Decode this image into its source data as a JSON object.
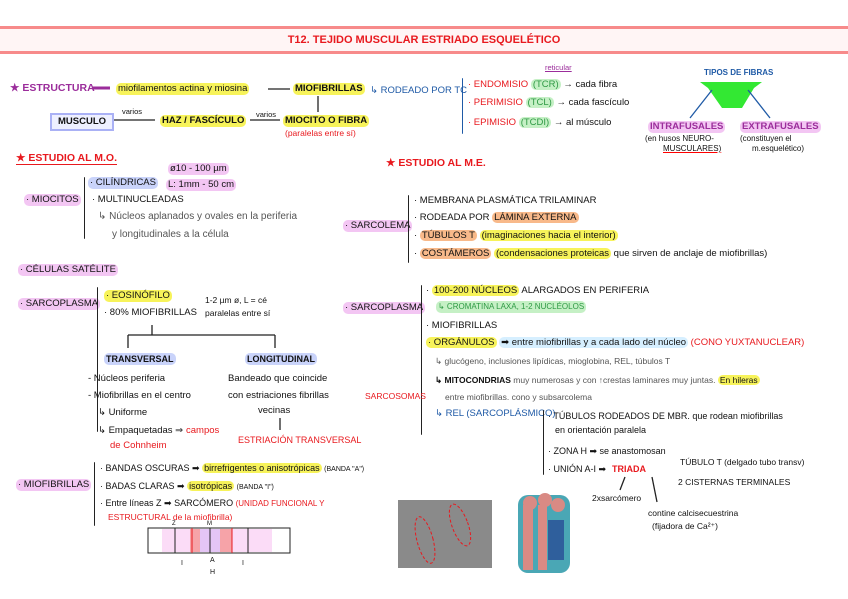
{
  "title": "T12. TEJIDO MUSCULAR ESTRIADO ESQUELÉTICO",
  "estructura": {
    "heading": "★ ESTRUCTURA",
    "miofilamentos": "miofilamentos actina y miosina",
    "miofibrillas": "MIOFIBRILLAS",
    "miocito": "MIOCITO O FIBRA",
    "paralelas": "(paralelas entre sí)",
    "varios1": "varios",
    "haz": "HAZ / FASCÍCULO",
    "varios2": "varios",
    "musculo": "MUSCULO"
  },
  "rodeado": {
    "label": "↳ RODEADO POR TC",
    "reticular": "reticular",
    "items": [
      {
        "name": "· ENDOMISIO",
        "tc": "(TCR)",
        "target": "→ cada fibra"
      },
      {
        "name": "· PERIMISIO",
        "tc": "(TCL)",
        "target": "→ cada fascículo"
      },
      {
        "name": "· EPIMISIO",
        "tc": "(TCDI)",
        "target": "→ al músculo"
      }
    ]
  },
  "tipos": {
    "title": "TIPOS DE FIBRAS",
    "intra": "INTRAFUSALES",
    "intra_note1": "(en husos NEURO-",
    "intra_note2": "MUSCULARES)",
    "extra": "EXTRAFUSALES",
    "extra_note1": "(constituyen el",
    "extra_note2": "m.esquelético)",
    "color": "#33e833"
  },
  "mo": {
    "heading": "★ ESTUDIO AL M.O.",
    "miocitos": "· MIOCITOS",
    "cilindricas": "· CILÍNDRICAS",
    "diam": "ø10 - 100 µm",
    "long": "L: 1mm - 50 cm",
    "multi": "· MULTINUCLEADAS",
    "nucleos1": "↳ Núcleos aplanados y ovales en la periferia",
    "nucleos2": "y longitudinales a la célula",
    "satelite": "· CÉLULAS SATÉLITE",
    "sarcoplasma": "· SARCOPLASMA",
    "eosinofilo": "· EOSINÓFILO",
    "miofib80": "· 80% MIOFIBRILLAS",
    "miofib_d1": "1-2 µm ø, L = cé",
    "miofib_d2": "paralelas entre sí",
    "transversal": "TRANSVERSAL",
    "t1": "- Núcleos periferia",
    "t2": "- Miofibrillas en el centro",
    "t3": "↳ Uniforme",
    "t4": "↳ Empaquetadas ⇒",
    "t4r": "campos",
    "t5": "de Cohnheim",
    "longitudinal": "LONGITUDINAL",
    "l1": "Bandeado que coincide",
    "l2": "con estriaciones fibrillas",
    "l3": "vecinas",
    "l4": "ESTRIACIÓN TRANSVERSAL",
    "miofibrillas": "· MIOFIBRILLAS",
    "b1": "· BANDAS OSCURAS ➡",
    "b1h": "birrefrigentes o anisotrópicas",
    "b1e": "(BANDA \"A\")",
    "b2": "· BADAS CLARAS ➡",
    "b2h": "isotrópicas",
    "b2e": "(BANDA \"I\")",
    "b3": "· Entre líneas Z ➡ SARCÓMERO",
    "b3r": "(UNIDAD FUNCIONAL Y",
    "b4r": "ESTRUCTURAL de la miofibrilla)",
    "diagram": {
      "z": "Z",
      "m": "M",
      "i": "I",
      "a": "A",
      "h": "H"
    }
  },
  "me": {
    "heading": "★ ESTUDIO AL M.E.",
    "sarcolema": "· SARCOLEMA",
    "s1": "· MEMBRANA PLASMÁTICA TRILAMINAR",
    "s2": "· RODEADA POR",
    "s2h": "LÁMINA EXTERNA",
    "s3h": "TÚBULOS T",
    "s3": "(imaginaciones hacia el interior)",
    "s4h": "COSTÁMEROS",
    "s4": "(condensaciones proteicas",
    "s4e": "que sirven de anclaje de miofibrillas)",
    "sarcoplasma": "· SARCOPLASMA",
    "p1h": "100-200 NÚCLEOS",
    "p1": "ALARGADOS EN PERIFERIA",
    "p1b": "↳ CROMATINA LAXA, 1-2 NUCLÉOLOS",
    "p2": "· MIOFIBRILLAS",
    "p3h": "· ORGÁNULOS",
    "p3": "➡ entre miofibrillas y a cada lado del núcleo",
    "p3r": "(CONO YUXTANUCLEAR)",
    "p4": "↳ glucógeno, inclusiones lipídicas, mioglobina, REL, túbulos T",
    "p5b": "↳ MITOCONDRIAS",
    "p5": "muy numerosas y con ↑crestas laminares muy juntas.",
    "p5h": "En hileras",
    "p5c": "entre miofibrillas. cono y subsarcolema",
    "sarcosomas": "SARCOSOMAS",
    "rel": "↳ REL (SARCOPLÁSMICO)",
    "r1": "· TÚBULOS RODEADOS DE MBR. que rodean miofibrillas",
    "r1b": "en orientación paralela",
    "r2": "· ZONA H ➡ se anastomosan",
    "r3": "· UNIÓN A-I ➡",
    "triada": "TRIADA",
    "tubulo": "TÚBULO T (delgado tubo transv)",
    "cisternas": "2 CISTERNAS TERMINALES",
    "sarc2": "2xsarcómero",
    "calci1": "contine calcisecuestrina",
    "calci2": "(fijadora de Ca²⁺)"
  }
}
